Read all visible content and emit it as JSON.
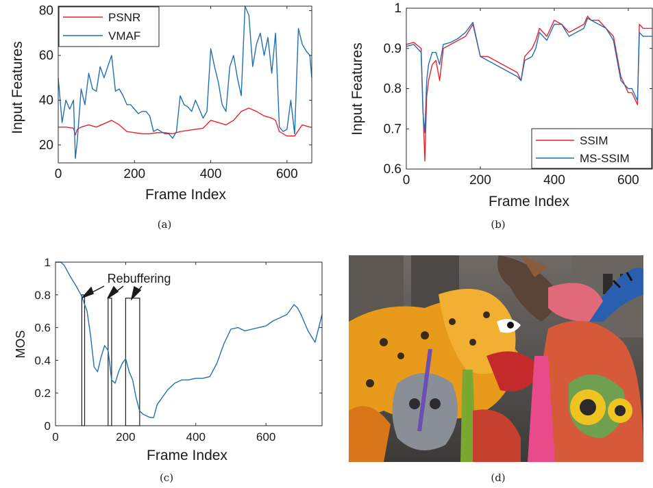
{
  "captions": [
    "(a)",
    "(b)",
    "(c)",
    "(d)"
  ],
  "colors": {
    "red": "#e8222a",
    "blue": "#1f6fb2",
    "axis": "#262626"
  },
  "photo": {
    "description_icon": "alebrije-parade-photo-icon"
  },
  "chart_data": [
    {
      "type": "line",
      "panel": "(a)",
      "xlabel": "Frame Index",
      "ylabel": "Input Features",
      "xlim": [
        0,
        665
      ],
      "ylim": [
        12,
        82
      ],
      "xticks": [
        0,
        200,
        400,
        600
      ],
      "yticks": [
        20,
        40,
        60,
        80
      ],
      "legend_position": "top-left",
      "series": [
        {
          "name": "PSNR",
          "color": "#e8222a",
          "x": [
            0,
            20,
            40,
            45,
            50,
            60,
            80,
            100,
            120,
            140,
            160,
            180,
            200,
            220,
            240,
            260,
            280,
            300,
            320,
            340,
            360,
            380,
            400,
            420,
            440,
            460,
            480,
            500,
            520,
            540,
            560,
            570,
            580,
            600,
            620,
            640,
            660,
            665
          ],
          "y": [
            28,
            28,
            27.5,
            24.5,
            27,
            28,
            29,
            28,
            29.5,
            31,
            29,
            26,
            25.5,
            25,
            25,
            25.5,
            25.5,
            25,
            26,
            26.5,
            27,
            27.5,
            31,
            30,
            29,
            31,
            35,
            36.5,
            35,
            33,
            32,
            31,
            26,
            24,
            24,
            29,
            28,
            28
          ]
        },
        {
          "name": "VMAF",
          "color": "#1f6fb2",
          "x": [
            0,
            10,
            20,
            30,
            40,
            45,
            50,
            60,
            70,
            80,
            90,
            100,
            110,
            120,
            130,
            140,
            150,
            160,
            170,
            180,
            190,
            200,
            210,
            220,
            230,
            240,
            250,
            260,
            270,
            280,
            290,
            300,
            310,
            320,
            330,
            340,
            350,
            360,
            370,
            380,
            390,
            400,
            410,
            420,
            430,
            440,
            450,
            460,
            470,
            480,
            490,
            500,
            510,
            520,
            530,
            540,
            550,
            560,
            570,
            580,
            590,
            600,
            610,
            620,
            630,
            640,
            650,
            660,
            665
          ],
          "y": [
            50,
            30,
            40,
            36,
            40,
            14,
            22,
            45,
            38,
            52,
            45,
            44,
            55,
            50,
            55,
            60,
            44,
            45,
            42,
            38,
            38,
            36,
            34,
            35,
            35,
            33,
            26,
            27,
            26,
            25,
            25,
            23,
            26,
            42,
            38,
            37,
            35,
            40,
            36,
            32,
            35,
            63,
            55,
            48,
            38,
            35,
            55,
            60,
            50,
            42,
            82,
            78,
            55,
            65,
            70,
            60,
            68,
            52,
            70,
            28,
            26,
            27,
            40,
            25,
            72,
            65,
            62,
            60,
            50
          ]
        }
      ]
    },
    {
      "type": "line",
      "panel": "(b)",
      "xlabel": "Frame Index",
      "ylabel": "Input Features",
      "xlim": [
        0,
        665
      ],
      "ylim": [
        0.6,
        1
      ],
      "xticks": [
        0,
        200,
        400,
        600
      ],
      "yticks": [
        0.6,
        0.7,
        0.8,
        0.9,
        1
      ],
      "legend_position": "bottom-right",
      "series": [
        {
          "name": "SSIM",
          "color": "#e8222a",
          "x": [
            0,
            20,
            40,
            45,
            50,
            55,
            60,
            70,
            80,
            90,
            100,
            120,
            140,
            160,
            180,
            200,
            220,
            240,
            260,
            280,
            300,
            310,
            320,
            340,
            350,
            360,
            380,
            400,
            420,
            440,
            460,
            480,
            490,
            500,
            520,
            540,
            560,
            580,
            600,
            610,
            620,
            625,
            630,
            640,
            660,
            665
          ],
          "y": [
            0.91,
            0.915,
            0.9,
            0.75,
            0.62,
            0.78,
            0.82,
            0.86,
            0.87,
            0.82,
            0.9,
            0.91,
            0.92,
            0.93,
            0.96,
            0.88,
            0.88,
            0.87,
            0.86,
            0.85,
            0.84,
            0.82,
            0.88,
            0.9,
            0.92,
            0.95,
            0.93,
            0.97,
            0.96,
            0.94,
            0.95,
            0.96,
            0.98,
            0.97,
            0.97,
            0.95,
            0.93,
            0.83,
            0.79,
            0.79,
            0.77,
            0.76,
            0.96,
            0.95,
            0.95,
            0.95
          ]
        },
        {
          "name": "MS-SSIM",
          "color": "#1f6fb2",
          "x": [
            0,
            20,
            40,
            45,
            50,
            55,
            60,
            70,
            80,
            90,
            100,
            120,
            140,
            160,
            180,
            200,
            220,
            240,
            260,
            280,
            300,
            310,
            320,
            340,
            350,
            360,
            380,
            400,
            420,
            440,
            460,
            480,
            490,
            500,
            520,
            540,
            560,
            580,
            600,
            610,
            620,
            625,
            630,
            640,
            660,
            665
          ],
          "y": [
            0.905,
            0.91,
            0.89,
            0.74,
            0.69,
            0.82,
            0.86,
            0.89,
            0.89,
            0.86,
            0.91,
            0.915,
            0.925,
            0.94,
            0.965,
            0.88,
            0.87,
            0.86,
            0.85,
            0.84,
            0.83,
            0.82,
            0.87,
            0.88,
            0.9,
            0.94,
            0.92,
            0.96,
            0.96,
            0.93,
            0.94,
            0.95,
            0.975,
            0.97,
            0.96,
            0.95,
            0.92,
            0.82,
            0.8,
            0.8,
            0.78,
            0.77,
            0.94,
            0.93,
            0.93,
            0.93
          ]
        }
      ]
    },
    {
      "type": "line",
      "panel": "(c)",
      "xlabel": "Frame Index",
      "ylabel": "MOS",
      "xlim": [
        0,
        760
      ],
      "ylim": [
        0,
        1
      ],
      "xticks": [
        0,
        200,
        400,
        600
      ],
      "yticks": [
        0,
        0.2,
        0.4,
        0.6,
        0.8,
        1
      ],
      "annotation": "Rebuffering",
      "rebuffer_regions": [
        {
          "x0": 75,
          "x1": 83,
          "top": 0.8
        },
        {
          "x0": 150,
          "x1": 160,
          "top": 0.78
        },
        {
          "x0": 200,
          "x1": 240,
          "top": 0.78
        }
      ],
      "series": [
        {
          "name": "",
          "color": "#1f6fb2",
          "x": [
            0,
            15,
            25,
            40,
            60,
            75,
            90,
            100,
            110,
            120,
            130,
            140,
            150,
            160,
            170,
            180,
            190,
            200,
            210,
            220,
            230,
            240,
            250,
            260,
            270,
            280,
            290,
            300,
            320,
            340,
            360,
            380,
            400,
            420,
            440,
            460,
            480,
            500,
            520,
            540,
            560,
            580,
            600,
            620,
            640,
            660,
            680,
            690,
            700,
            720,
            740,
            760
          ],
          "y": [
            1,
            1,
            0.98,
            0.92,
            0.85,
            0.79,
            0.7,
            0.55,
            0.36,
            0.33,
            0.42,
            0.49,
            0.46,
            0.28,
            0.26,
            0.33,
            0.38,
            0.41,
            0.33,
            0.28,
            0.17,
            0.09,
            0.07,
            0.06,
            0.05,
            0.05,
            0.13,
            0.16,
            0.22,
            0.26,
            0.28,
            0.28,
            0.29,
            0.29,
            0.3,
            0.38,
            0.5,
            0.59,
            0.6,
            0.58,
            0.59,
            0.6,
            0.61,
            0.64,
            0.66,
            0.68,
            0.74,
            0.72,
            0.68,
            0.58,
            0.51,
            0.68
          ]
        }
      ]
    }
  ]
}
